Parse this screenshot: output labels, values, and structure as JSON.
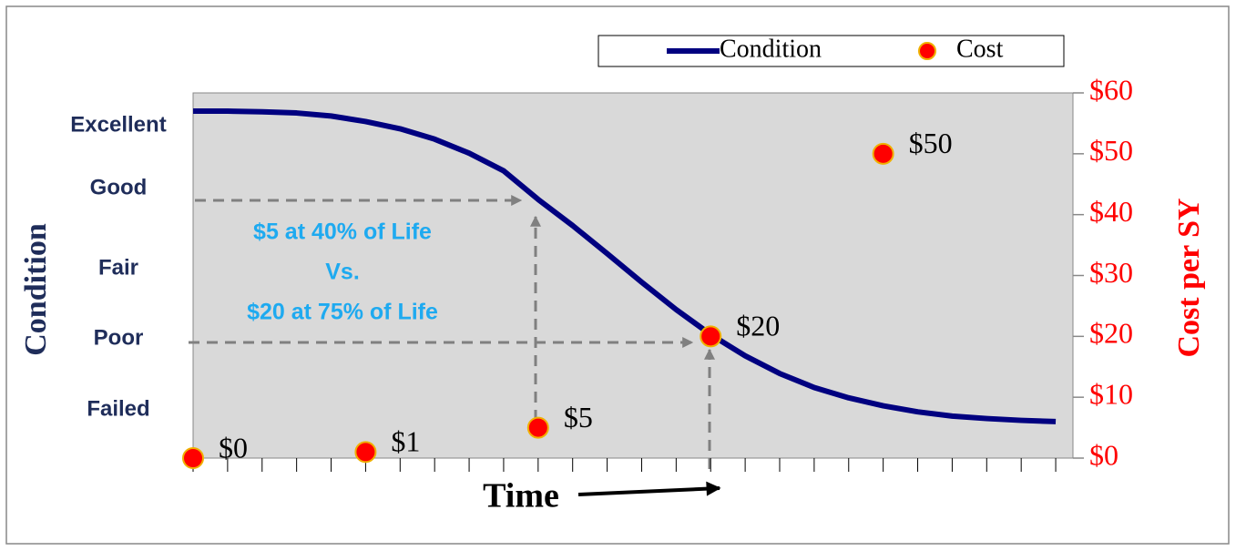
{
  "chart_data": {
    "type": "line",
    "xlabel": "Time",
    "ylabel": "Condition",
    "y2label": "Cost per SY",
    "xlim": [
      0,
      25.5
    ],
    "xticks": [
      0,
      1,
      2,
      3,
      4,
      5,
      6,
      7,
      8,
      9,
      10,
      11,
      12,
      13,
      14,
      15,
      16,
      17,
      18,
      19,
      20,
      21,
      22,
      23,
      24,
      25
    ],
    "ylim": [
      0,
      6
    ],
    "yticks": [
      {
        "value": 0.79,
        "label": "Failed"
      },
      {
        "value": 1.96,
        "label": "Poor"
      },
      {
        "value": 3.11,
        "label": "Fair"
      },
      {
        "value": 4.43,
        "label": "Good"
      },
      {
        "value": 5.46,
        "label": "Excellent"
      }
    ],
    "y2lim": [
      0,
      60
    ],
    "y2ticks": [
      {
        "value": 0,
        "label": "$0"
      },
      {
        "value": 10,
        "label": "$10"
      },
      {
        "value": 20,
        "label": "$20"
      },
      {
        "value": 30,
        "label": "$30"
      },
      {
        "value": 40,
        "label": "$40"
      },
      {
        "value": 50,
        "label": "$50"
      },
      {
        "value": 60,
        "label": "$60"
      }
    ],
    "legend": "top",
    "series": [
      {
        "name": "Condition",
        "color": "#000080",
        "axis": "y",
        "x": [
          0,
          1,
          2,
          3,
          4,
          5,
          6,
          7,
          8,
          9,
          10,
          11,
          12,
          13,
          14,
          15,
          16,
          17,
          18,
          19,
          20,
          21,
          22,
          23,
          24,
          25
        ],
        "values": [
          5.7,
          5.7,
          5.69,
          5.67,
          5.62,
          5.53,
          5.41,
          5.24,
          5.01,
          4.72,
          4.25,
          3.82,
          3.36,
          2.89,
          2.44,
          2.03,
          1.68,
          1.39,
          1.16,
          0.99,
          0.86,
          0.76,
          0.69,
          0.65,
          0.62,
          0.6
        ]
      },
      {
        "name": "Cost",
        "color": "#ff0000",
        "axis": "y2",
        "marker": "circle",
        "x": [
          0,
          5,
          10,
          15,
          20
        ],
        "values": [
          0,
          1,
          5,
          20,
          50
        ],
        "value_labels": [
          "$0",
          "$1",
          "$5",
          "$20",
          "$50"
        ]
      }
    ],
    "annotations": [
      "$5 at 40% of Life",
      "Vs.",
      "$20 at 75% of Life"
    ]
  }
}
